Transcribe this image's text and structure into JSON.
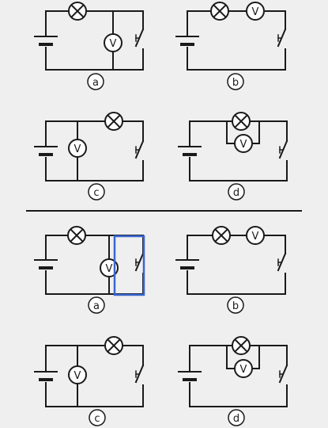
{
  "symbols": {
    "voltmeter": "V",
    "lamp": "lamp-cross-icon",
    "battery": "battery-icon",
    "switch": "switch-icon"
  },
  "colors": {
    "wire": "#1a1a1a",
    "background": "#efefef",
    "divider": "#1a1a1a",
    "highlight": "#3a66d0"
  },
  "top_group": {
    "circuits": [
      {
        "label": "a",
        "voltmeter_position": "parallel-with-switch-branch"
      },
      {
        "label": "b",
        "voltmeter_position": "series"
      },
      {
        "label": "c",
        "voltmeter_position": "parallel-with-battery"
      },
      {
        "label": "d",
        "voltmeter_position": "parallel-with-lamp"
      }
    ]
  },
  "bottom_group": {
    "circuits": [
      {
        "label": "a",
        "voltmeter_position": "parallel-with-switch-branch",
        "highlighted": true
      },
      {
        "label": "b",
        "voltmeter_position": "series"
      },
      {
        "label": "c",
        "voltmeter_position": "parallel-with-battery"
      },
      {
        "label": "d",
        "voltmeter_position": "parallel-with-lamp"
      }
    ]
  }
}
